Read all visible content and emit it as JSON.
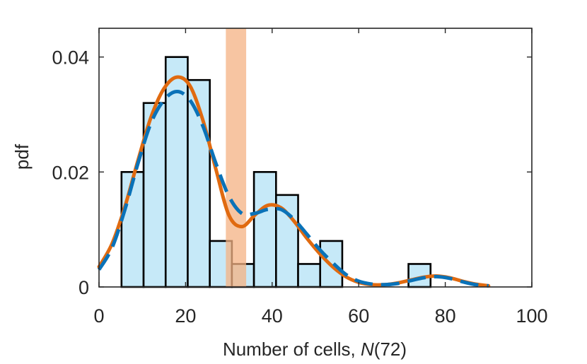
{
  "chart_data": {
    "type": "bar",
    "title": "",
    "xlabel_prefix": "Number of cells, ",
    "xlabel_var": "N",
    "xlabel_suffix": "(72)",
    "ylabel": "pdf",
    "xlim": [
      0,
      100
    ],
    "ylim": [
      0,
      0.045
    ],
    "xticks": [
      0,
      20,
      40,
      60,
      80,
      100
    ],
    "xtick_labels": [
      "0",
      "20",
      "40",
      "60",
      "80",
      "100"
    ],
    "yticks": [
      0,
      0.02,
      0.04
    ],
    "ytick_labels": [
      "0",
      "0.02",
      "0.04"
    ],
    "histogram": {
      "name": "histogram",
      "bin_edges": [
        5.2,
        10.3,
        15.4,
        20.5,
        25.6,
        30.7,
        35.8,
        40.9,
        46.0,
        51.1,
        56.2,
        61.3,
        66.4,
        71.5,
        76.6
      ],
      "values": [
        0.02,
        0.032,
        0.04,
        0.036,
        0.008,
        0.004,
        0.02,
        0.016,
        0.004,
        0.008,
        0,
        0,
        0,
        0.004
      ],
      "face_color": "#c6e9f8",
      "edge_color": "#000000"
    },
    "band": {
      "name": "shaded-band",
      "x_range": [
        29.3,
        34.0
      ],
      "color": "#f4b183"
    },
    "series": [
      {
        "name": "solid-fit",
        "style": "solid",
        "color": "#e06a10",
        "x": [
          0,
          3,
          6,
          9,
          12,
          15,
          18,
          21,
          24,
          27,
          30,
          33,
          36,
          39,
          42,
          45,
          48,
          51,
          54,
          57,
          60,
          63,
          66,
          69,
          72,
          75,
          78,
          81,
          84,
          87,
          90
        ],
        "y": [
          0.0035,
          0.0075,
          0.014,
          0.022,
          0.0295,
          0.0345,
          0.0365,
          0.035,
          0.029,
          0.0205,
          0.0125,
          0.0105,
          0.0125,
          0.0142,
          0.0138,
          0.0115,
          0.0085,
          0.0058,
          0.0035,
          0.0018,
          0.0008,
          0.0004,
          0.0004,
          0.0007,
          0.0012,
          0.0017,
          0.0019,
          0.0016,
          0.001,
          0.0005,
          0.0002
        ]
      },
      {
        "name": "dashed-fit",
        "style": "dashed",
        "color": "#0a72b8",
        "x": [
          0,
          3,
          6,
          9,
          12,
          15,
          18,
          21,
          24,
          27,
          30,
          33,
          36,
          39,
          42,
          45,
          48,
          51,
          54,
          57,
          60,
          63,
          66,
          69,
          72,
          75,
          78,
          81,
          84,
          87,
          90
        ],
        "y": [
          0.003,
          0.0068,
          0.0135,
          0.0215,
          0.0285,
          0.0325,
          0.034,
          0.0325,
          0.028,
          0.0215,
          0.0158,
          0.0128,
          0.0128,
          0.0135,
          0.0135,
          0.0118,
          0.0092,
          0.0065,
          0.0042,
          0.0022,
          0.001,
          0.0005,
          0.0004,
          0.0006,
          0.0011,
          0.0016,
          0.0018,
          0.0015,
          0.0009,
          0.0004,
          0.0002
        ]
      }
    ]
  }
}
